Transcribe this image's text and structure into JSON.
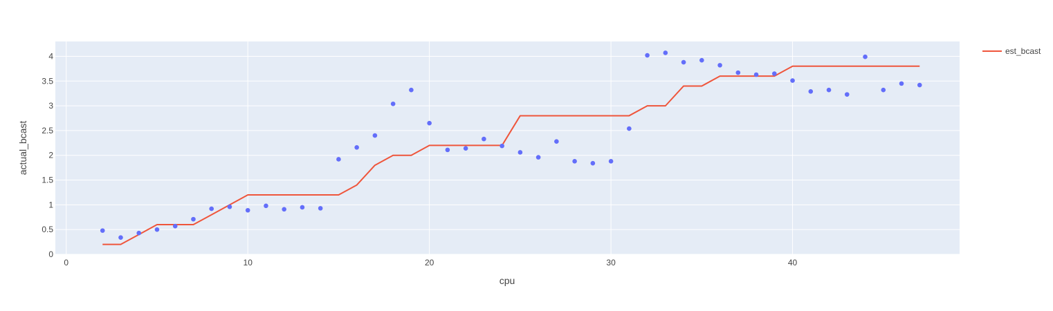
{
  "chart_data": {
    "type": "scatter",
    "title": "",
    "xlabel": "cpu",
    "ylabel": "actual_bcast",
    "xlim": [
      -0.6,
      49.2
    ],
    "ylim": [
      0,
      4.3
    ],
    "x_ticks": [
      0,
      10,
      20,
      30,
      40
    ],
    "y_ticks": [
      0,
      0.5,
      1,
      1.5,
      2,
      2.5,
      3,
      3.5,
      4
    ],
    "x_tick_labels": [
      "0",
      "10",
      "20",
      "30",
      "40"
    ],
    "y_tick_labels": [
      "0",
      "0.5",
      "1",
      "1.5",
      "2",
      "2.5",
      "3",
      "3.5",
      "4"
    ],
    "grid": true,
    "legend_position": "top-right",
    "colors": {
      "plot_bg": "#E5ECF6",
      "grid": "#ffffff",
      "markers": "#636EFA",
      "line": "#EF553B"
    },
    "series": [
      {
        "name": "actual_bcast",
        "mode": "markers",
        "show_in_legend": false,
        "x": [
          2,
          3,
          4,
          5,
          6,
          7,
          8,
          9,
          10,
          11,
          12,
          13,
          14,
          15,
          16,
          17,
          18,
          19,
          20,
          21,
          22,
          23,
          24,
          25,
          26,
          27,
          28,
          29,
          30,
          31,
          32,
          33,
          34,
          35,
          36,
          37,
          38,
          39,
          40,
          41,
          42,
          43,
          44,
          45,
          46,
          47
        ],
        "y": [
          0.48,
          0.34,
          0.43,
          0.5,
          0.57,
          0.71,
          0.92,
          0.96,
          0.89,
          0.98,
          0.91,
          0.95,
          0.93,
          1.92,
          2.16,
          2.4,
          3.04,
          3.32,
          2.65,
          2.11,
          2.14,
          2.33,
          2.19,
          2.06,
          1.96,
          2.28,
          1.88,
          1.84,
          1.88,
          2.54,
          4.02,
          4.07,
          3.88,
          3.92,
          3.82,
          3.67,
          3.63,
          3.65,
          3.51,
          3.29,
          3.32,
          3.23,
          3.99,
          3.32,
          3.45,
          3.42
        ]
      },
      {
        "name": "est_bcast",
        "mode": "lines",
        "show_in_legend": true,
        "x": [
          2,
          3,
          4,
          5,
          6,
          7,
          8,
          9,
          10,
          11,
          12,
          13,
          14,
          15,
          16,
          17,
          18,
          19,
          20,
          21,
          22,
          23,
          24,
          25,
          26,
          27,
          28,
          29,
          30,
          31,
          32,
          33,
          34,
          35,
          36,
          37,
          38,
          39,
          40,
          41,
          42,
          43,
          44,
          45,
          46,
          47
        ],
        "y": [
          0.2,
          0.2,
          0.4,
          0.6,
          0.6,
          0.6,
          0.8,
          1.0,
          1.2,
          1.2,
          1.2,
          1.2,
          1.2,
          1.2,
          1.4,
          1.8,
          2.0,
          2.0,
          2.2,
          2.2,
          2.2,
          2.2,
          2.2,
          2.8,
          2.8,
          2.8,
          2.8,
          2.8,
          2.8,
          2.8,
          3.0,
          3.0,
          3.4,
          3.4,
          3.6,
          3.6,
          3.6,
          3.6,
          3.8,
          3.8,
          3.8,
          3.8,
          3.8,
          3.8,
          3.8,
          3.8
        ]
      }
    ]
  }
}
